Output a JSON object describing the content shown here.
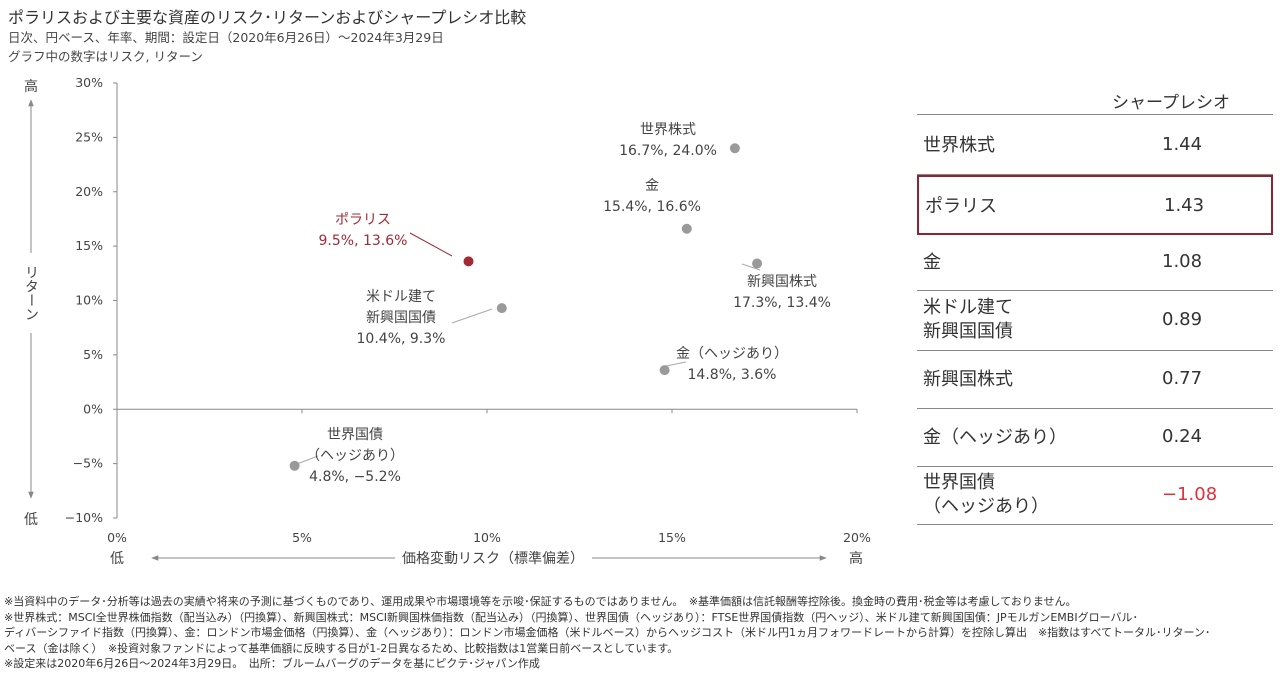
{
  "header": {
    "title": "ポラリスおよび主要な資産のリスク･リターンおよびシャープレシオ比較",
    "subtitle1": "日次、円ベース、年率、期間：設定日（2020年6月26日）～2024年3月29日",
    "subtitle2": "グラフ中の数字はリスク, リターン"
  },
  "chart_data": {
    "type": "scatter",
    "title": "ポラリスおよび主要な資産のリスク･リターンおよびシャープレシオ比較",
    "xlabel": "価格変動リスク（標準偏差）",
    "ylabel": "リターン",
    "xlim": [
      0,
      20
    ],
    "ylim": [
      -10,
      30
    ],
    "x_ticks": [
      "0%",
      "5%",
      "10%",
      "15%",
      "20%"
    ],
    "y_ticks": [
      "30%",
      "25%",
      "20%",
      "15%",
      "10%",
      "5%",
      "0%",
      "−5%",
      "−10%"
    ],
    "x_low": "低",
    "x_high": "高",
    "y_low": "低",
    "y_high": "高",
    "grid": false,
    "points": [
      {
        "name": "世界株式",
        "name_lines": [
          "世界株式"
        ],
        "label": "16.7%, 24.0%",
        "x": 16.7,
        "y": 24.0,
        "color": "#9a9a9a"
      },
      {
        "name": "金",
        "name_lines": [
          "金"
        ],
        "label": "15.4%, 16.6%",
        "x": 15.4,
        "y": 16.6,
        "color": "#9a9a9a"
      },
      {
        "name": "ポラリス",
        "name_lines": [
          "ポラリス"
        ],
        "label": "9.5%, 13.6%",
        "x": 9.5,
        "y": 13.6,
        "color": "#a12a36"
      },
      {
        "name": "新興国株式",
        "name_lines": [
          "新興国株式"
        ],
        "label": "17.3%, 13.4%",
        "x": 17.3,
        "y": 13.4,
        "color": "#9a9a9a"
      },
      {
        "name": "米ドル建て新興国国債",
        "name_lines": [
          "米ドル建て",
          "新興国国債"
        ],
        "label": "10.4%, 9.3%",
        "x": 10.4,
        "y": 9.3,
        "color": "#9a9a9a"
      },
      {
        "name": "金（ヘッジあり）",
        "name_lines": [
          "金（ヘッジあり）"
        ],
        "label": "14.8%, 3.6%",
        "x": 14.8,
        "y": 3.6,
        "color": "#9a9a9a"
      },
      {
        "name": "世界国債（ヘッジあり）",
        "name_lines": [
          "世界国債",
          "（ヘッジあり）"
        ],
        "label": "4.8%, −5.2%",
        "x": 4.8,
        "y": -5.2,
        "color": "#9a9a9a"
      }
    ]
  },
  "sharpe": {
    "header": "シャープレシオ",
    "rows": [
      {
        "name": "世界株式",
        "lines": [
          "世界株式"
        ],
        "value": "1.44"
      },
      {
        "name": "ポラリス",
        "lines": [
          "ポラリス"
        ],
        "value": "1.43",
        "highlight": true
      },
      {
        "name": "金",
        "lines": [
          "金"
        ],
        "value": "1.08"
      },
      {
        "name": "米ドル建て新興国国債",
        "lines": [
          "米ドル建て",
          "新興国国債"
        ],
        "value": "0.89"
      },
      {
        "name": "新興国株式",
        "lines": [
          "新興国株式"
        ],
        "value": "0.77"
      },
      {
        "name": "金（ヘッジあり）",
        "lines": [
          "金（ヘッジあり）"
        ],
        "value": "0.24"
      },
      {
        "name": "世界国債（ヘッジあり）",
        "lines": [
          "世界国債",
          "（ヘッジあり）"
        ],
        "value": "−1.08",
        "negative": true
      }
    ]
  },
  "notes": [
    "※当資料中のデータ･分析等は過去の実績や将来の予測に基づくものであり、運用成果や市場環境等を示唆･保証するものではありません。　※基準価額は信託報酬等控除後。換金時の費用･税金等は考慮しておりません。",
    "※世界株式：MSCI全世界株価指数（配当込み）（円換算）、新興国株式：MSCI新興国株価指数（配当込み）（円換算）、世界国債（ヘッジあり）：FTSE世界国債指数（円ヘッジ）、米ドル建て新興国国債：JPモルガンEMBIグローバル･",
    "ディバーシファイド指数（円換算）、金：ロンドン市場金価格（円換算）、金（ヘッジあり）：ロンドン市場金価格（米ドルベース）からヘッジコスト（米ドル円1ヵ月フォワードレートから計算）を控除し算出　※指数はすべてトータル･リターン･",
    "ベース（金は除く）　※投資対象ファンドによって基準価額に反映する日が1-2日異なるため、比較指数は1営業日前ベースとしています。",
    "※設定来は2020年6月26日～2024年3月29日。　出所：ブルームバーグのデータを基にピクテ･ジャパン作成"
  ]
}
